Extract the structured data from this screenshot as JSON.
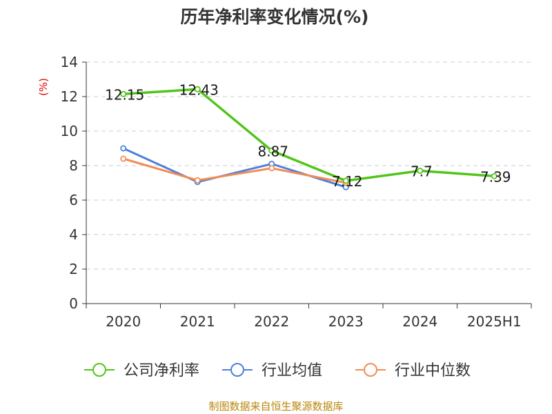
{
  "chart_data": {
    "type": "line",
    "title": "历年净利率变化情况(%)",
    "ylabel": "(%)",
    "xlabel": "",
    "categories": [
      "2020",
      "2021",
      "2022",
      "2023",
      "2024",
      "2025H1"
    ],
    "ylim": [
      0,
      14
    ],
    "yticks": [
      0,
      2,
      4,
      6,
      8,
      10,
      12,
      14
    ],
    "grid": true,
    "legend_position": "bottom",
    "series": [
      {
        "name": "公司净利率",
        "color": "#52c41a",
        "values": [
          12.15,
          12.43,
          8.87,
          7.12,
          7.7,
          7.39
        ],
        "labels": [
          "12.15",
          "12.43",
          "8.87",
          "7.12",
          "7.7",
          "7.39"
        ]
      },
      {
        "name": "行业均值",
        "color": "#4d7fdc",
        "values": [
          9.0,
          7.05,
          8.1,
          6.75,
          null,
          null
        ]
      },
      {
        "name": "行业中位数",
        "color": "#f28b54",
        "values": [
          8.4,
          7.15,
          7.85,
          7.0,
          null,
          null
        ]
      }
    ]
  },
  "footer": {
    "source": "制图数据来自恒生聚源数据库"
  }
}
